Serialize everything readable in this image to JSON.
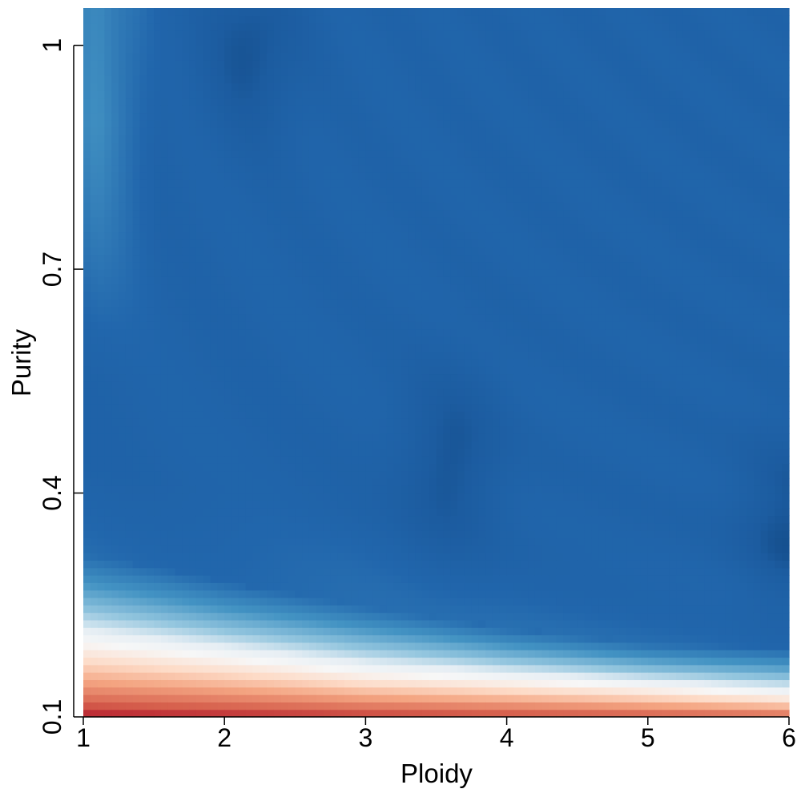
{
  "chart_data": {
    "type": "heatmap",
    "title": "",
    "xlabel": "Ploidy",
    "ylabel": "Purity",
    "xlim": [
      1,
      6
    ],
    "ylim": [
      0.1,
      1.05
    ],
    "xticks": [
      1,
      2,
      3,
      4,
      5,
      6
    ],
    "xtick_labels": [
      "1",
      "2",
      "3",
      "4",
      "5",
      "6"
    ],
    "yticks": [
      0.1,
      0.4,
      0.7,
      1.0
    ],
    "ytick_labels": [
      "0.1",
      "0.4",
      "0.7",
      "1"
    ],
    "grid": false,
    "legend": "none",
    "colormap": "RdBu (red = high, blue = low)",
    "colors": {
      "red_dark": "#67001f",
      "red": "#b2182b",
      "salmon": "#f4a582",
      "white": "#f7f7f7",
      "light_blue": "#92c5de",
      "blue": "#2166ac",
      "dark_blue": "#053061"
    },
    "pattern": {
      "description_values": "Values are highest (red) at purity ~0.1 across all ploidy, transitioning through white around purity 0.15-0.28 (higher threshold at low ploidy), and low (blue) for purity above ~0.35. Darkest blue minima near ploidy 2.2 at purity 1.0, and along a curved band near purity 0.4-0.5 at high ploidy.",
      "transition_purity_by_ploidy": [
        {
          "ploidy": 1,
          "red_to_white": 0.2,
          "white_to_blue": 0.32
        },
        {
          "ploidy": 2,
          "red_to_white": 0.18,
          "white_to_blue": 0.28
        },
        {
          "ploidy": 3,
          "red_to_white": 0.16,
          "white_to_blue": 0.25
        },
        {
          "ploidy": 4,
          "red_to_white": 0.15,
          "white_to_blue": 0.22
        },
        {
          "ploidy": 5,
          "red_to_white": 0.14,
          "white_to_blue": 0.2
        },
        {
          "ploidy": 6,
          "red_to_white": 0.13,
          "white_to_blue": 0.19
        }
      ],
      "dark_spots": [
        {
          "ploidy": 2.2,
          "purity": 1.0
        },
        {
          "ploidy": 3.6,
          "purity": 0.44
        },
        {
          "ploidy": 6.0,
          "purity": 0.36
        }
      ],
      "light_region": {
        "ploidy": 1.1,
        "purity_range": [
          0.7,
          1.05
        ]
      }
    }
  }
}
